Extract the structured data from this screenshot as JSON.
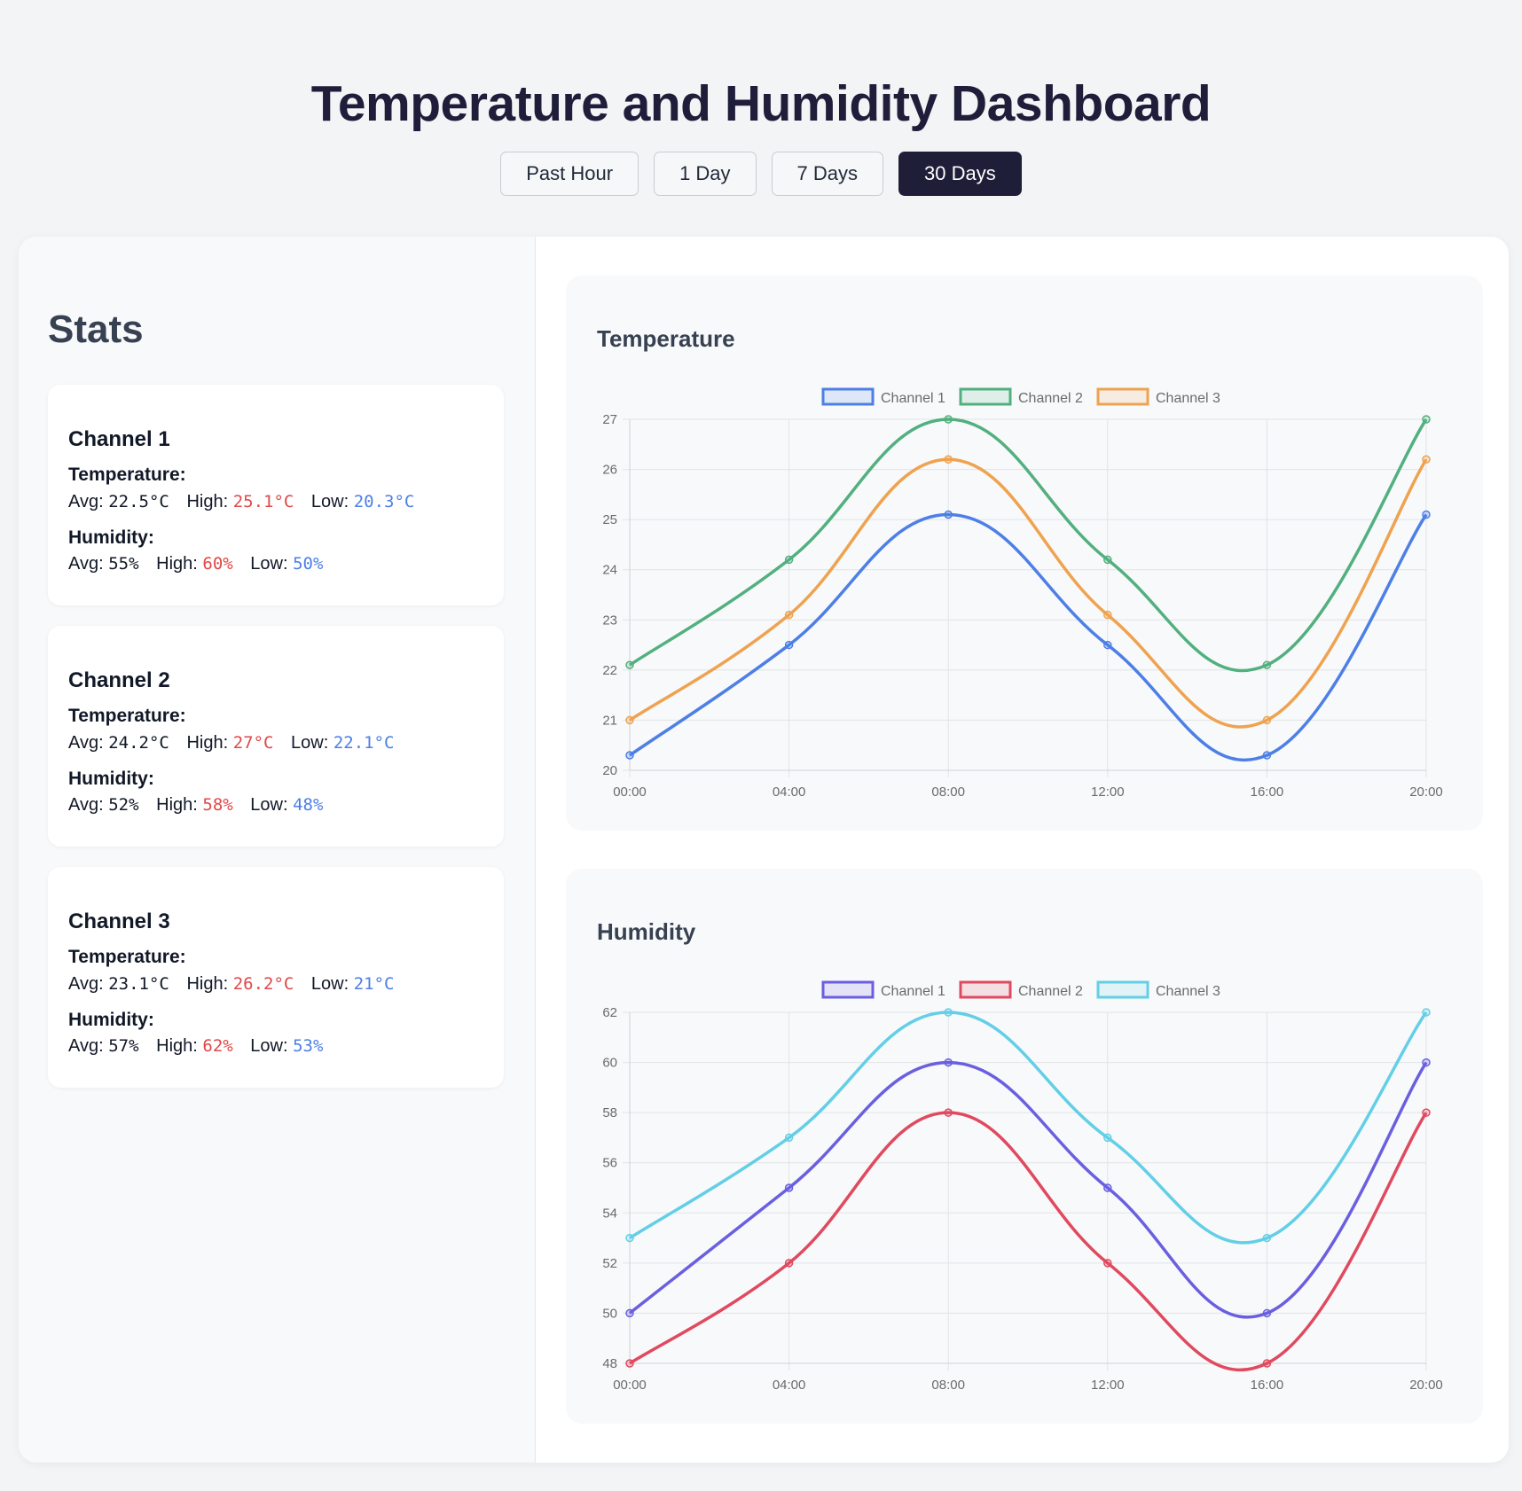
{
  "header": {
    "title": "Temperature and Humidity Dashboard",
    "ranges": [
      {
        "label": "Past Hour",
        "active": false
      },
      {
        "label": "1 Day",
        "active": false
      },
      {
        "label": "7 Days",
        "active": false
      },
      {
        "label": "30 Days",
        "active": true
      }
    ]
  },
  "stats": {
    "title": "Stats",
    "labels": {
      "temperature": "Temperature:",
      "humidity": "Humidity:",
      "avg": "Avg:",
      "high": "High:",
      "low": "Low:"
    },
    "channels": [
      {
        "name": "Channel 1",
        "temperature": {
          "avg": "22.5°C",
          "high": "25.1°C",
          "low": "20.3°C"
        },
        "humidity": {
          "avg": "55%",
          "high": "60%",
          "low": "50%"
        }
      },
      {
        "name": "Channel 2",
        "temperature": {
          "avg": "24.2°C",
          "high": "27°C",
          "low": "22.1°C"
        },
        "humidity": {
          "avg": "52%",
          "high": "58%",
          "low": "48%"
        }
      },
      {
        "name": "Channel 3",
        "temperature": {
          "avg": "23.1°C",
          "high": "26.2°C",
          "low": "21°C"
        },
        "humidity": {
          "avg": "57%",
          "high": "62%",
          "low": "53%"
        }
      }
    ]
  },
  "colors": {
    "high": "#e04848",
    "low": "#4d7fe6",
    "active_button": "#1e1e38"
  },
  "chart_data": [
    {
      "type": "line",
      "title": "Temperature",
      "x": [
        "00:00",
        "04:00",
        "08:00",
        "12:00",
        "16:00",
        "20:00"
      ],
      "ylim": [
        20,
        27
      ],
      "yticks": [
        20,
        21,
        22,
        23,
        24,
        25,
        26,
        27
      ],
      "grid": true,
      "legend": "top-center",
      "series": [
        {
          "name": "Channel 1",
          "color": "#4d7fe6",
          "values": [
            20.3,
            22.5,
            25.1,
            22.5,
            20.3,
            25.1
          ]
        },
        {
          "name": "Channel 2",
          "color": "#52b07f",
          "values": [
            22.1,
            24.2,
            27.0,
            24.2,
            22.1,
            27.0
          ]
        },
        {
          "name": "Channel 3",
          "color": "#efa24f",
          "values": [
            21.0,
            23.1,
            26.2,
            23.1,
            21.0,
            26.2
          ]
        }
      ]
    },
    {
      "type": "line",
      "title": "Humidity",
      "x": [
        "00:00",
        "04:00",
        "08:00",
        "12:00",
        "16:00",
        "20:00"
      ],
      "ylim": [
        48,
        62
      ],
      "yticks": [
        48,
        50,
        52,
        54,
        56,
        58,
        60,
        62
      ],
      "grid": true,
      "legend": "top-center",
      "series": [
        {
          "name": "Channel 1",
          "color": "#6a5fe0",
          "values": [
            50,
            55,
            60,
            55,
            50,
            60
          ]
        },
        {
          "name": "Channel 2",
          "color": "#e04a5f",
          "values": [
            48,
            52,
            58,
            52,
            48,
            58
          ]
        },
        {
          "name": "Channel 3",
          "color": "#63cfe6",
          "values": [
            53,
            57,
            62,
            57,
            53,
            62
          ]
        }
      ]
    }
  ]
}
